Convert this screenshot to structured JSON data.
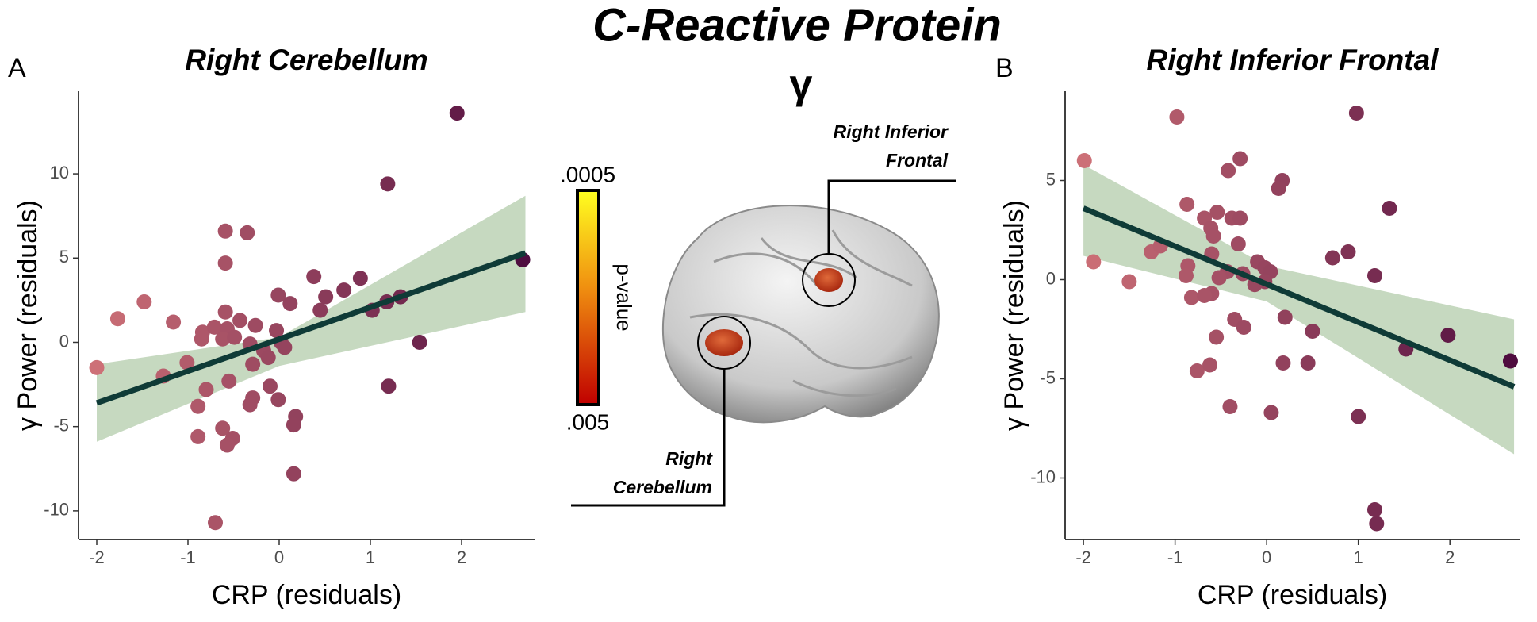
{
  "title": "C-Reactive Protein",
  "subtitle": "γ",
  "brain": {
    "colorbar_max": ".0005",
    "colorbar_min": ".005",
    "colorbar_label": "p-value",
    "label_frontal": [
      "Right Inferior",
      "Frontal"
    ],
    "label_cerebellum": [
      "Right",
      "Cerebellum"
    ]
  },
  "chart_data": [
    {
      "type": "scatter",
      "panel": "A",
      "title": "Right Cerebellum",
      "x_label": "CRP (residuals)",
      "y_label": "γ Power (residuals)",
      "xlim": [
        -2.2,
        2.8
      ],
      "ylim": [
        -11.7,
        14.9
      ],
      "xticks": [
        -2,
        -1,
        0,
        1,
        2
      ],
      "yticks": [
        -10,
        -5,
        0,
        5,
        10
      ],
      "color_scale": [
        "#d27479",
        "#4c0a3e"
      ],
      "x": [
        1.95,
        1.19,
        2.67,
        -0.59,
        -0.35,
        -0.59,
        -1.48,
        -1.77,
        -1.16,
        0.38,
        0.51,
        0.71,
        0.89,
        0.45,
        -0.01,
        0.12,
        1.02,
        1.18,
        1.33,
        1.54,
        1.2,
        -0.59,
        -0.43,
        -0.26,
        -0.84,
        -0.71,
        -0.57,
        -0.62,
        -0.49,
        -0.32,
        -0.03,
        0.02,
        0.06,
        -0.17,
        -0.85,
        -1.01,
        -1.27,
        -2.0,
        -0.8,
        -0.55,
        -0.29,
        -0.12,
        -0.1,
        -0.29,
        -0.32,
        -0.01,
        -0.89,
        0.18,
        0.16,
        -0.62,
        -0.51,
        -0.57,
        -0.89,
        0.16,
        -0.7
      ],
      "values": [
        13.6,
        9.4,
        4.9,
        6.6,
        6.5,
        4.7,
        2.4,
        1.4,
        1.2,
        3.9,
        2.7,
        3.1,
        3.8,
        1.9,
        2.8,
        2.3,
        1.9,
        2.4,
        2.7,
        0,
        -2.6,
        1.8,
        1.3,
        1.0,
        0.6,
        0.9,
        0.8,
        0.2,
        0.3,
        -0.1,
        0.7,
        0,
        -0.3,
        -0.5,
        0.2,
        -1.2,
        -2.0,
        -1.5,
        -2.8,
        -2.3,
        -1.3,
        -0.9,
        -2.6,
        -3.3,
        -3.7,
        -3.4,
        -3.8,
        -4.4,
        -4.9,
        -5.1,
        -5.7,
        -6.1,
        -5.6,
        -7.8,
        -10.7
      ],
      "fit_x": [
        -2,
        2.7
      ],
      "fit_y": [
        -3.6,
        5.3
      ],
      "fit_color": "#0f3b37",
      "band_x": [
        -2,
        0,
        2.7
      ],
      "band_lower": [
        -5.9,
        -1.4,
        1.8
      ],
      "band_upper": [
        -1.3,
        0.3,
        8.7
      ],
      "band_color": "#c6d9c0"
    },
    {
      "type": "scatter",
      "panel": "B",
      "title": "Right Inferior Frontal",
      "x_label": "CRP (residuals)",
      "y_label": "γ Power (residuals)",
      "xlim": [
        -2.2,
        2.76
      ],
      "ylim": [
        -13.1,
        9.5
      ],
      "xticks": [
        -2,
        -1,
        0,
        1,
        2
      ],
      "yticks": [
        -10,
        -5,
        0,
        5
      ],
      "color_scale": [
        "#d27479",
        "#4c0a3e"
      ],
      "x": [
        -1.99,
        -0.98,
        0.98,
        -0.29,
        -0.42,
        0.17,
        0.13,
        1.34,
        -0.87,
        -0.68,
        -0.54,
        -0.38,
        -0.29,
        -0.61,
        -0.58,
        -0.31,
        -1.26,
        -1.16,
        0.72,
        0.89,
        -1.89,
        -0.6,
        -0.1,
        -0.02,
        0.04,
        -0.26,
        -0.43,
        -0.86,
        -0.88,
        -1.5,
        -0.52,
        -0.02,
        -0.13,
        1.18,
        -0.82,
        -0.6,
        -0.68,
        -0.35,
        -0.25,
        0.2,
        0.5,
        -0.55,
        1.52,
        1.98,
        2.66,
        -0.76,
        -0.62,
        0.18,
        0.45,
        -0.4,
        0.05,
        1.0,
        1.18,
        1.2
      ],
      "values": [
        6.0,
        8.2,
        8.4,
        6.1,
        5.5,
        5.0,
        4.6,
        3.6,
        3.8,
        3.1,
        3.4,
        3.1,
        3.1,
        2.6,
        2.2,
        1.8,
        1.4,
        1.7,
        1.1,
        1.4,
        0.9,
        1.3,
        0.9,
        0.6,
        0.4,
        0.3,
        0.4,
        0.7,
        0.2,
        -0.1,
        0.1,
        -0.1,
        -0.25,
        0.2,
        -0.9,
        -0.7,
        -0.8,
        -2.0,
        -2.4,
        -1.9,
        -2.6,
        -2.9,
        -3.5,
        -2.8,
        -4.1,
        -4.6,
        -4.3,
        -4.2,
        -4.2,
        -6.4,
        -6.7,
        -6.9,
        -11.6,
        -12.3
      ],
      "fit_x": [
        -2,
        2.7
      ],
      "fit_y": [
        3.6,
        -5.4
      ],
      "fit_color": "#0f3b37",
      "band_x": [
        -2,
        0,
        2.7
      ],
      "band_lower": [
        1.2,
        -1.1,
        -8.8
      ],
      "band_upper": [
        5.8,
        0.7,
        -2.0
      ],
      "band_color": "#c6d9c0"
    }
  ]
}
